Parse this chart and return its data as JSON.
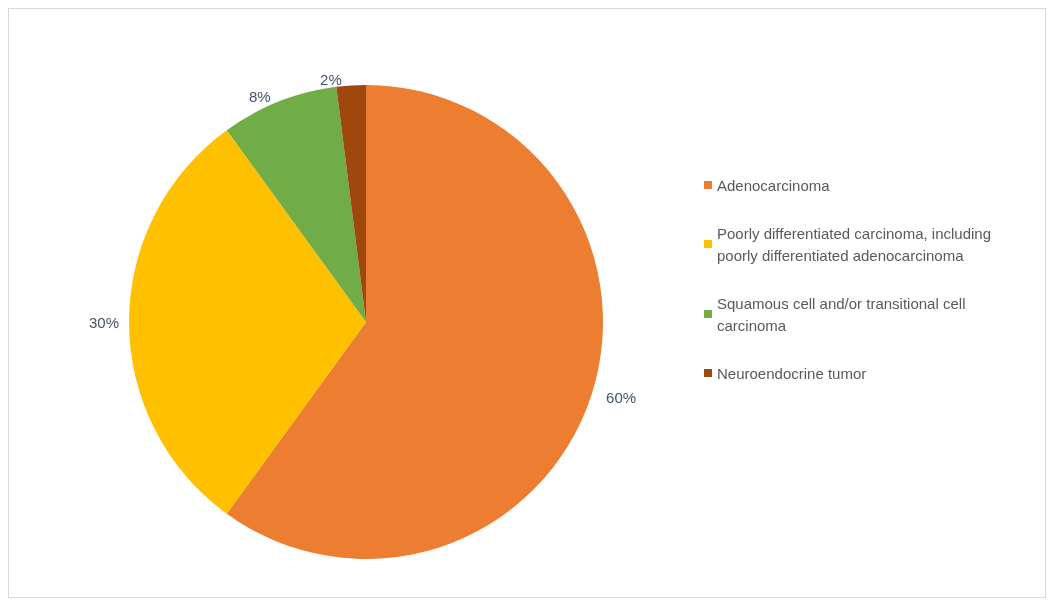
{
  "chart_data": {
    "type": "pie",
    "categories": [
      "Adenocarcinoma",
      "Poorly differentiated carcinoma, including poorly differentiated adenocarcinoma",
      "Squamous cell and/or transitional cell carcinoma",
      "Neuroendocrine tumor"
    ],
    "values": [
      60,
      30,
      8,
      2
    ],
    "colors": [
      "#ed7d31",
      "#ffc000",
      "#70ad47",
      "#9e480e"
    ],
    "value_labels": [
      "60%",
      "30%",
      "8%",
      "2%"
    ],
    "legend": "right"
  }
}
